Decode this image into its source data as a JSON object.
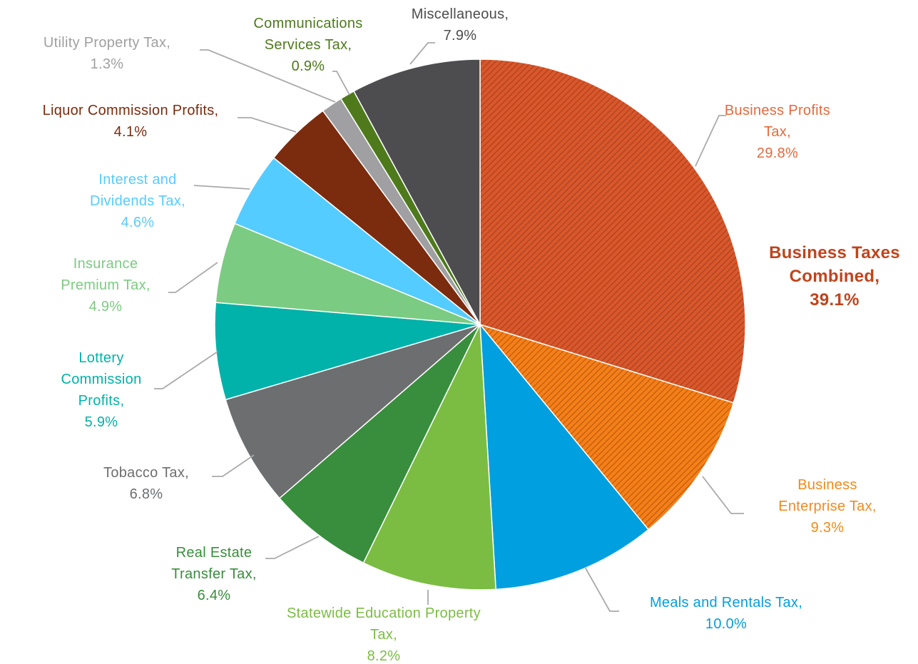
{
  "chart_data": {
    "type": "pie",
    "categories": [
      "Business Profits Tax,",
      "Business Enterprise Tax,",
      "Meals and Rentals Tax,",
      "Statewide Education Property Tax,",
      "Real Estate Transfer Tax,",
      "Tobacco Tax,",
      "Lottery Commission Profits,",
      "Insurance Premium Tax,",
      "Interest and Dividends Tax,",
      "Liquor Commission Profits,",
      "Utility Property Tax,",
      "Communications Services Tax,",
      "Miscellaneous,"
    ],
    "values": [
      29.8,
      9.3,
      10.0,
      8.2,
      6.4,
      6.8,
      5.9,
      4.9,
      4.6,
      4.1,
      1.3,
      0.9,
      7.9
    ],
    "value_labels": [
      "29.8%",
      "9.3%",
      "10.0%",
      "8.2%",
      "6.4%",
      "6.8%",
      "5.9%",
      "4.9%",
      "4.6%",
      "4.1%",
      "1.3%",
      "0.9%",
      "7.9%"
    ],
    "colors": [
      "#d9572b",
      "#f57f17",
      "#009fdf",
      "#7bbd42",
      "#388e3c",
      "#6d6e70",
      "#00b2a9",
      "#7ccb82",
      "#55ccff",
      "#7b2b0e",
      "#a0a0a2",
      "#4e7a1c",
      "#4d4d4f"
    ],
    "hatched": [
      true,
      true,
      false,
      false,
      false,
      false,
      false,
      false,
      false,
      false,
      false,
      false,
      false
    ],
    "annotation": {
      "text": "Business Taxes Combined,",
      "value_label": "39.1%",
      "color": "#c0441c"
    }
  }
}
